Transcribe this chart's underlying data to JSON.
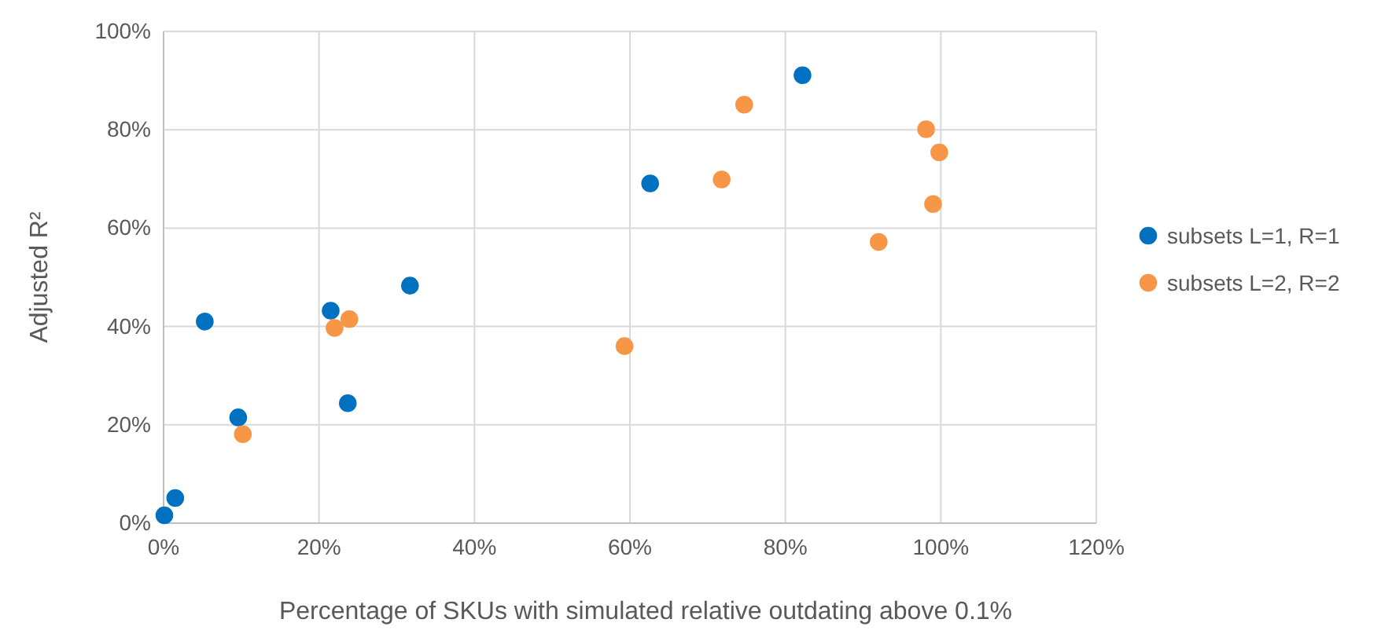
{
  "chart_data": {
    "type": "scatter",
    "xlabel": "Percentage of SKUs with simulated relative outdating above 0.1%",
    "ylabel": "Adjusted R²",
    "xlim": [
      0,
      120
    ],
    "xticks": [
      {
        "value": 0,
        "label": "0%"
      },
      {
        "value": 20,
        "label": "20%"
      },
      {
        "value": 40,
        "label": "40%"
      },
      {
        "value": 60,
        "label": "60%"
      },
      {
        "value": 80,
        "label": "80%"
      },
      {
        "value": 100,
        "label": "100%"
      },
      {
        "value": 120,
        "label": "120%"
      }
    ],
    "ylim": [
      0,
      100
    ],
    "yticks": [
      {
        "value": 0,
        "label": "0%"
      },
      {
        "value": 20,
        "label": "20%"
      },
      {
        "value": 40,
        "label": "40%"
      },
      {
        "value": 60,
        "label": "60%"
      },
      {
        "value": 80,
        "label": "80%"
      },
      {
        "value": 100,
        "label": "100%"
      }
    ],
    "grid": true,
    "legend": "right",
    "marker": "circle",
    "series": [
      {
        "name": "subsets L=1, R=1",
        "color": "#0070c0",
        "x": [
          0.1,
          1.5,
          5.3,
          9.6,
          21.5,
          23.7,
          31.7,
          62.6,
          82.2
        ],
        "values": [
          1.6,
          5.1,
          41,
          21.5,
          43.2,
          24.4,
          48.3,
          69.1,
          91.1
        ]
      },
      {
        "name": "subsets L=2, R=2",
        "color": "#f79646",
        "x": [
          10.2,
          22,
          23.9,
          59.3,
          71.8,
          74.7,
          98.1,
          99.8,
          99,
          92
        ],
        "values": [
          18.1,
          39.7,
          41.5,
          36,
          69.9,
          85.1,
          80.1,
          75.4,
          64.9,
          57.2
        ]
      }
    ]
  }
}
